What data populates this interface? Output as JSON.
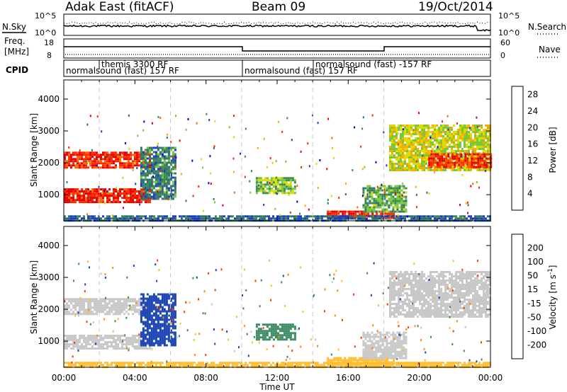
{
  "header": {
    "station": "Adak East (fitACF)",
    "beam": "Beam 09",
    "date": "19/Oct/2014"
  },
  "summary_panels": {
    "nsky_label": "N.Sky",
    "nsearch_label": "N.Search",
    "noise_ticks": [
      "10^5",
      "10^0"
    ],
    "freq_label": "Freq.",
    "freq_unit": "[MHz]",
    "freq_ticks": [
      "18",
      "8"
    ],
    "nave_label": "Nave",
    "nave_ticks": [
      "60",
      "0"
    ],
    "cpid_label": "CPID",
    "cpid_segments": [
      {
        "text": "normalsound (fast) 157 RF",
        "start_h": 0,
        "end_h": 10
      },
      {
        "text": "themis 3300 RF",
        "start_h": 2,
        "end_h": 4.3
      },
      {
        "text": "normalsound (fast) 157 RF",
        "start_h": 10,
        "end_h": 14
      },
      {
        "text": "normalsound (fast) -157 RF",
        "start_h": 14,
        "end_h": 24
      }
    ]
  },
  "colors": {
    "power_scale": [
      "#0000ee",
      "#1e3cc8",
      "#2d6e78",
      "#3c8c50",
      "#78c83c",
      "#dcdc00",
      "#ffaa00",
      "#ff6400",
      "#ff2800",
      "#e60000"
    ],
    "velocity_scale": [
      "#ff0000",
      "#ff3c00",
      "#ff8c00",
      "#ffbe32",
      "#c8c8c8",
      "#c8c8c8",
      "#32a028",
      "#3c8c64",
      "#1e46b4",
      "#0000cc"
    ],
    "noise_line": "#000000"
  },
  "chart_data": [
    {
      "type": "heatmap",
      "title": "",
      "xlabel": "",
      "ylabel": "Slant Range [km]",
      "xlim": [
        0,
        24
      ],
      "ylim": [
        180,
        4600
      ],
      "x_ticks": [
        "00:00",
        "04:00",
        "08:00",
        "12:00",
        "16:00",
        "20:00",
        "00:00"
      ],
      "y_ticks": [
        1000,
        2000,
        3000,
        4000
      ],
      "colorbar_label": "Power [dB]",
      "colorbar_ticks": [
        4,
        8,
        12,
        16,
        20,
        24,
        28
      ],
      "colorbar_range": [
        0,
        30
      ],
      "echo_regions": [
        {
          "start_h": 0.0,
          "end_h": 4.8,
          "range_min": 800,
          "range_max": 1200,
          "value": 27
        },
        {
          "start_h": 0.0,
          "end_h": 4.8,
          "range_min": 1850,
          "range_max": 2350,
          "value": 26
        },
        {
          "start_h": 4.3,
          "end_h": 6.3,
          "range_min": 900,
          "range_max": 2500,
          "value": 9
        },
        {
          "start_h": 10.8,
          "end_h": 13.0,
          "range_min": 1050,
          "range_max": 1550,
          "value": 14
        },
        {
          "start_h": 14.8,
          "end_h": 18.6,
          "range_min": 280,
          "range_max": 500,
          "value": 27
        },
        {
          "start_h": 16.8,
          "end_h": 19.2,
          "range_min": 500,
          "range_max": 1300,
          "value": 12
        },
        {
          "start_h": 18.3,
          "end_h": 24.0,
          "range_min": 1800,
          "range_max": 3200,
          "value": 16
        },
        {
          "start_h": 20.5,
          "end_h": 24.0,
          "range_min": 1900,
          "range_max": 2300,
          "value": 26
        },
        {
          "start_h": 0.0,
          "end_h": 24.0,
          "range_min": 200,
          "range_max": 350,
          "value": 7
        }
      ]
    },
    {
      "type": "heatmap",
      "title": "",
      "xlabel": "Time UT",
      "ylabel": "Slant Range [km]",
      "xlim": [
        0,
        24
      ],
      "ylim": [
        180,
        4600
      ],
      "x_ticks": [
        "00:00",
        "04:00",
        "08:00",
        "12:00",
        "16:00",
        "20:00",
        "00:00"
      ],
      "y_ticks": [
        1000,
        2000,
        3000,
        4000
      ],
      "colorbar_label": "Velocity [m s^-1]",
      "colorbar_ticks": [
        200,
        100,
        50,
        15,
        -15,
        -50,
        -100,
        -200
      ],
      "echo_regions": [
        {
          "start_h": 0.0,
          "end_h": 4.8,
          "range_min": 800,
          "range_max": 1200,
          "value": 0
        },
        {
          "start_h": 0.0,
          "end_h": 4.8,
          "range_min": 1850,
          "range_max": 2350,
          "value": 0
        },
        {
          "start_h": 4.3,
          "end_h": 6.3,
          "range_min": 900,
          "range_max": 2500,
          "value": 180
        },
        {
          "start_h": 10.8,
          "end_h": 13.0,
          "range_min": 1050,
          "range_max": 1550,
          "value": 60
        },
        {
          "start_h": 14.8,
          "end_h": 18.6,
          "range_min": 280,
          "range_max": 500,
          "value": -40
        },
        {
          "start_h": 16.8,
          "end_h": 19.2,
          "range_min": 500,
          "range_max": 1300,
          "value": 0
        },
        {
          "start_h": 18.3,
          "end_h": 24.0,
          "range_min": 1800,
          "range_max": 3200,
          "value": 0
        },
        {
          "start_h": 0.0,
          "end_h": 24.0,
          "range_min": 200,
          "range_max": 350,
          "value": -30
        }
      ]
    }
  ]
}
